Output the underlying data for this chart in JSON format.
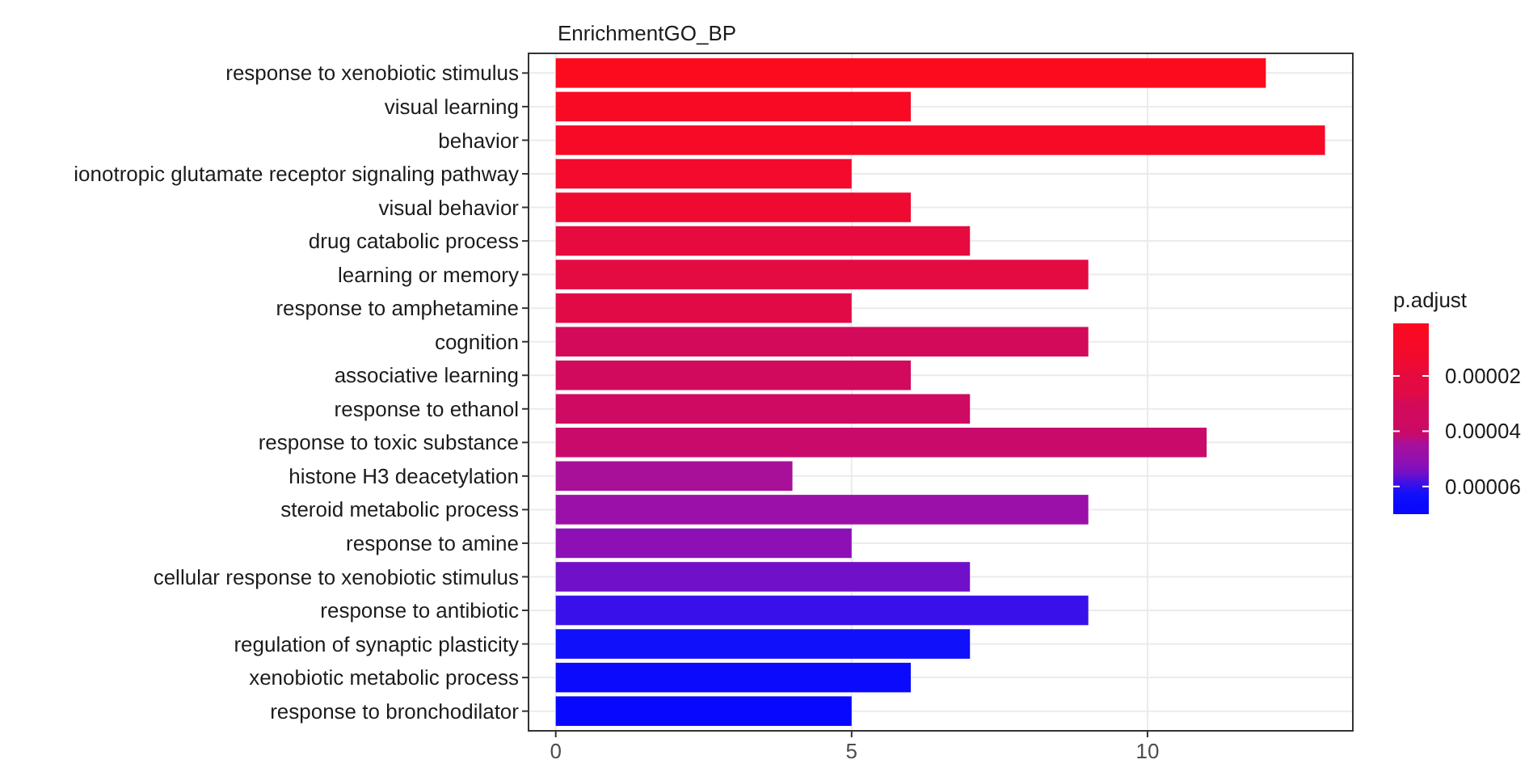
{
  "chart_data": {
    "type": "bar",
    "orientation": "horizontal",
    "title": "EnrichmentGO_BP",
    "categories": [
      "response to xenobiotic stimulus",
      "visual learning",
      "behavior",
      "ionotropic glutamate receptor signaling pathway",
      "visual behavior",
      "drug catabolic process",
      "learning or memory",
      "response to amphetamine",
      "cognition",
      "associative learning",
      "response to ethanol",
      "response to toxic substance",
      "histone H3 deacetylation",
      "steroid metabolic process",
      "response to amine",
      "cellular response to xenobiotic stimulus",
      "response to antibiotic",
      "regulation of synaptic plasticity",
      "xenobiotic metabolic process",
      "response to bronchodilator"
    ],
    "values": [
      12,
      6,
      13,
      5,
      6,
      7,
      9,
      5,
      9,
      6,
      7,
      11,
      4,
      9,
      5,
      7,
      9,
      7,
      6,
      5
    ],
    "colors": [
      "#fc0a1e",
      "#f80a24",
      "#f70a26",
      "#f30a2c",
      "#ef0a32",
      "#e60a3e",
      "#e40a42",
      "#e10a46",
      "#d30a5a",
      "#d10a5e",
      "#ce0a62",
      "#c90a6a",
      "#a8109a",
      "#9a10a8",
      "#8c10b6",
      "#7010c8",
      "#3a10ea",
      "#1010fa",
      "#0c0afc",
      "#0808ff"
    ],
    "xlim": [
      -0.46,
      13.47
    ],
    "xticks": [
      0,
      5,
      10
    ],
    "grid": true,
    "clabel": "p.adjust",
    "clim": [
      1e-06,
      7e-05
    ],
    "cticks": [
      {
        "value": 2e-05,
        "label": "0.00002"
      },
      {
        "value": 4e-05,
        "label": "0.00004"
      },
      {
        "value": 6e-05,
        "label": "0.00006"
      }
    ]
  }
}
